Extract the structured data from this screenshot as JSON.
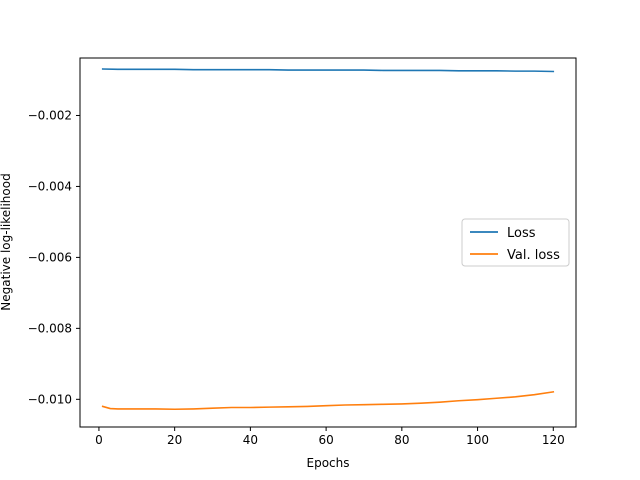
{
  "chart_data": {
    "type": "line",
    "title": "",
    "xlabel": "Epochs",
    "ylabel": "Negative log-likelihood",
    "xlim": [
      -5,
      126
    ],
    "ylim": [
      -0.01078,
      -0.00038
    ],
    "xticks": [
      0,
      20,
      40,
      60,
      80,
      100,
      120
    ],
    "xtick_labels": [
      "0",
      "20",
      "40",
      "60",
      "80",
      "100",
      "120"
    ],
    "yticks": [
      -0.002,
      -0.004,
      -0.006,
      -0.008,
      -0.01
    ],
    "ytick_labels": [
      "−0.002",
      "−0.004",
      "−0.006",
      "−0.008",
      "−0.010"
    ],
    "grid": false,
    "legend_position": "center-right",
    "series": [
      {
        "name": "Loss",
        "color": "#1f77b4",
        "x": [
          1,
          5,
          10,
          15,
          20,
          25,
          30,
          35,
          40,
          45,
          50,
          55,
          60,
          65,
          70,
          75,
          80,
          85,
          90,
          95,
          100,
          105,
          110,
          115,
          120
        ],
        "y": [
          -0.00069,
          -0.0007,
          -0.0007,
          -0.0007,
          -0.0007,
          -0.00071,
          -0.00071,
          -0.00071,
          -0.00071,
          -0.00071,
          -0.00072,
          -0.00072,
          -0.00072,
          -0.00072,
          -0.00072,
          -0.00073,
          -0.00073,
          -0.00073,
          -0.00073,
          -0.00074,
          -0.00074,
          -0.00074,
          -0.00075,
          -0.00075,
          -0.00076
        ]
      },
      {
        "name": "Val. loss",
        "color": "#ff7f0e",
        "x": [
          1,
          3,
          5,
          10,
          15,
          20,
          25,
          30,
          35,
          40,
          45,
          50,
          55,
          60,
          65,
          70,
          75,
          80,
          85,
          90,
          95,
          100,
          105,
          110,
          115,
          120
        ],
        "y": [
          -0.0102,
          -0.01026,
          -0.01027,
          -0.01027,
          -0.01027,
          -0.01028,
          -0.01027,
          -0.01025,
          -0.01023,
          -0.01023,
          -0.01022,
          -0.01021,
          -0.0102,
          -0.01018,
          -0.01016,
          -0.01015,
          -0.01014,
          -0.01013,
          -0.01011,
          -0.01008,
          -0.01004,
          -0.01001,
          -0.00997,
          -0.00993,
          -0.00987,
          -0.00979
        ]
      }
    ]
  }
}
